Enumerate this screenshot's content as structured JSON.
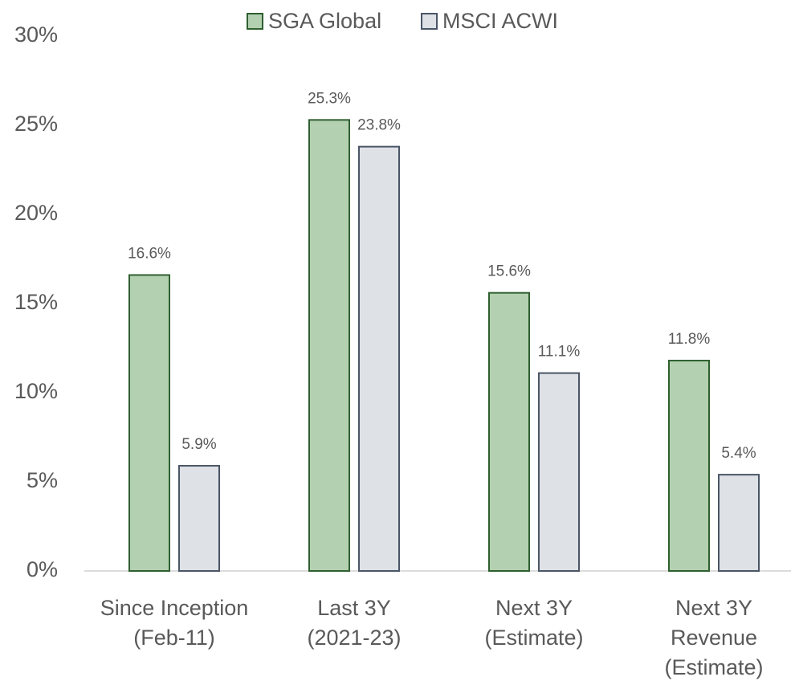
{
  "chart_data": {
    "type": "bar",
    "categories": [
      [
        "Since Inception",
        "(Feb-11)"
      ],
      [
        "Last 3Y",
        "(2021-23)"
      ],
      [
        "Next 3Y",
        "(Estimate)"
      ],
      [
        "Next 3Y",
        "Revenue",
        "(Estimate)"
      ]
    ],
    "series": [
      {
        "name": "SGA Global",
        "color": "#b3d1b0",
        "stroke": "#2f5f2f",
        "values": [
          16.6,
          25.3,
          15.6,
          11.8
        ],
        "value_labels": [
          "16.6%",
          "25.3%",
          "15.6%",
          "11.8%"
        ]
      },
      {
        "name": "MSCI ACWI",
        "color": "#dee2e6",
        "stroke": "#4a5566",
        "values": [
          5.9,
          23.8,
          11.1,
          5.4
        ],
        "value_labels": [
          "5.9%",
          "23.8%",
          "11.1%",
          "5.4%"
        ]
      }
    ],
    "ylim": [
      0,
      30
    ],
    "yticks": [
      {
        "value": 0,
        "label": "0%"
      },
      {
        "value": 5,
        "label": "5%"
      },
      {
        "value": 10,
        "label": "10%"
      },
      {
        "value": 15,
        "label": "15%"
      },
      {
        "value": 20,
        "label": "20%"
      },
      {
        "value": 25,
        "label": "25%"
      },
      {
        "value": 30,
        "label": "30%"
      }
    ],
    "grid": false,
    "legend": "top"
  }
}
